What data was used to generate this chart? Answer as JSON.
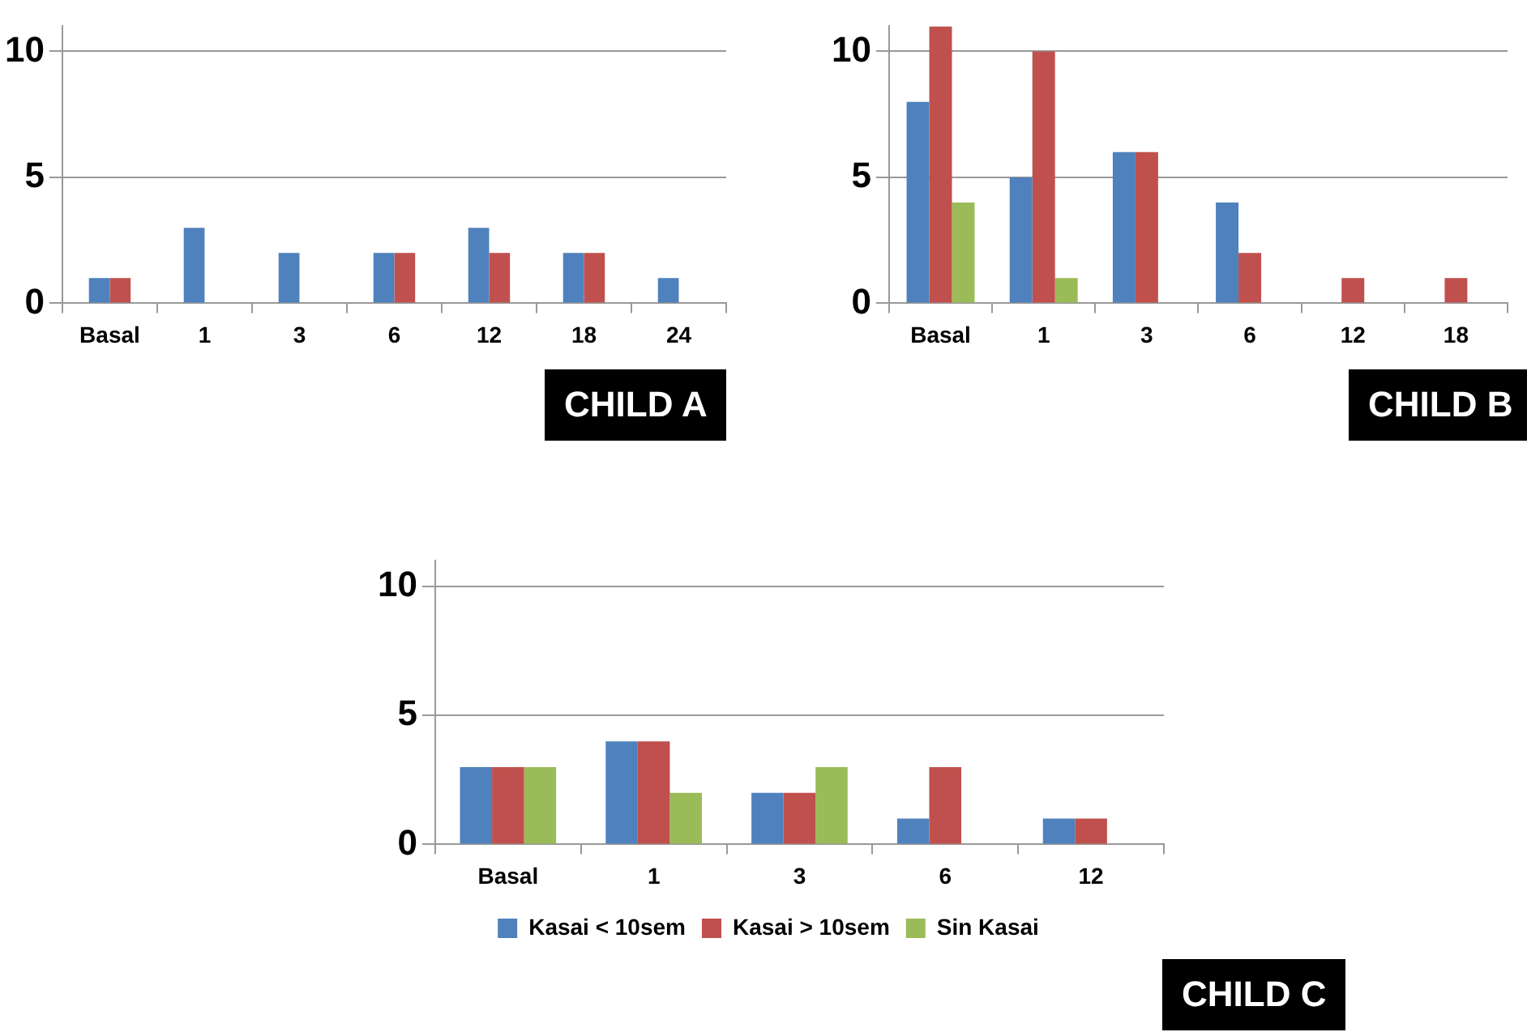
{
  "chart_data": [
    {
      "type": "bar",
      "categories": [
        "Basal",
        "1",
        "3",
        "6",
        "12",
        "18",
        "24"
      ],
      "series": [
        {
          "color": "#4f81bd",
          "values": [
            1,
            3,
            2,
            2,
            3,
            2,
            1
          ]
        },
        {
          "color": "#c0504d",
          "values": [
            1,
            null,
            null,
            2,
            2,
            2,
            null
          ]
        }
      ],
      "ylim": [
        0,
        11
      ],
      "yticks": [
        0,
        5,
        10
      ],
      "grid": "y",
      "legend": false,
      "annotations": [
        "CHILD A"
      ]
    },
    {
      "type": "bar",
      "categories": [
        "Basal",
        "1",
        "3",
        "6",
        "12",
        "18"
      ],
      "series": [
        {
          "color": "#4f81bd",
          "values": [
            8,
            5,
            6,
            4,
            null,
            null
          ]
        },
        {
          "color": "#c0504d",
          "values": [
            11,
            10,
            6,
            2,
            1,
            1
          ]
        },
        {
          "color": "#9bbb59",
          "values": [
            4,
            1,
            null,
            null,
            null,
            null
          ]
        }
      ],
      "ylim": [
        0,
        11
      ],
      "yticks": [
        0,
        5,
        10
      ],
      "grid": "y",
      "legend": false,
      "annotations": [
        "CHILD B"
      ]
    },
    {
      "type": "bar",
      "categories": [
        "Basal",
        "1",
        "3",
        "6",
        "12"
      ],
      "series": [
        {
          "name": "Kasai < 10sem",
          "color": "#4f81bd",
          "values": [
            3,
            4,
            2,
            1,
            1
          ]
        },
        {
          "name": "Kasai > 10sem",
          "color": "#c0504d",
          "values": [
            3,
            4,
            2,
            3,
            1
          ]
        },
        {
          "name": "Sin Kasai",
          "color": "#9bbb59",
          "values": [
            3,
            2,
            3,
            null,
            null
          ]
        }
      ],
      "ylim": [
        0,
        11
      ],
      "yticks": [
        0,
        5,
        10
      ],
      "grid": "y",
      "legend": "bottom",
      "annotations": [
        "CHILD C"
      ]
    }
  ]
}
